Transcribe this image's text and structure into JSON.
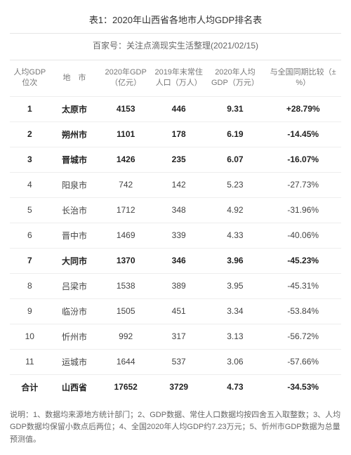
{
  "title": "表1：2020年山西省各地市人均GDP排名表",
  "subtitle": "百家号：关注点滴现实生活整理(2021/02/15)",
  "columns": {
    "rank": "人均GDP位次",
    "city": "地　市",
    "gdp": "2020年GDP（亿元）",
    "pop": "2019年末常住人口（万人）",
    "pcgdp": "2020年人均GDP（万元）",
    "comp": "与全国同期比较（±%）"
  },
  "rows": [
    {
      "rank": "1",
      "city": "太原市",
      "gdp": "4153",
      "pop": "446",
      "pcgdp": "9.31",
      "comp": "+28.79%",
      "bold": true
    },
    {
      "rank": "2",
      "city": "朔州市",
      "gdp": "1101",
      "pop": "178",
      "pcgdp": "6.19",
      "comp": "-14.45%",
      "bold": true
    },
    {
      "rank": "3",
      "city": "晋城市",
      "gdp": "1426",
      "pop": "235",
      "pcgdp": "6.07",
      "comp": "-16.07%",
      "bold": true
    },
    {
      "rank": "4",
      "city": "阳泉市",
      "gdp": "742",
      "pop": "142",
      "pcgdp": "5.23",
      "comp": "-27.73%",
      "bold": false
    },
    {
      "rank": "5",
      "city": "长治市",
      "gdp": "1712",
      "pop": "348",
      "pcgdp": "4.92",
      "comp": "-31.96%",
      "bold": false
    },
    {
      "rank": "6",
      "city": "晋中市",
      "gdp": "1469",
      "pop": "339",
      "pcgdp": "4.33",
      "comp": "-40.06%",
      "bold": false
    },
    {
      "rank": "7",
      "city": "大同市",
      "gdp": "1370",
      "pop": "346",
      "pcgdp": "3.96",
      "comp": "-45.23%",
      "bold": true
    },
    {
      "rank": "8",
      "city": "吕梁市",
      "gdp": "1538",
      "pop": "389",
      "pcgdp": "3.95",
      "comp": "-45.31%",
      "bold": false
    },
    {
      "rank": "9",
      "city": "临汾市",
      "gdp": "1505",
      "pop": "451",
      "pcgdp": "3.34",
      "comp": "-53.84%",
      "bold": false
    },
    {
      "rank": "10",
      "city": "忻州市",
      "gdp": "992",
      "pop": "317",
      "pcgdp": "3.13",
      "comp": "-56.72%",
      "bold": false
    },
    {
      "rank": "11",
      "city": "运城市",
      "gdp": "1644",
      "pop": "537",
      "pcgdp": "3.06",
      "comp": "-57.66%",
      "bold": false
    },
    {
      "rank": "合计",
      "city": "山西省",
      "gdp": "17652",
      "pop": "3729",
      "pcgdp": "4.73",
      "comp": "-34.53%",
      "bold": true
    }
  ],
  "notes": "说明：1、数据均来源地方统计部门；2、GDP数据、常住人口数据均按四舍五入取整数；3、人均GDP数据均保留小数点后两位；4、全国2020年人均GDP约7.23万元；5、忻州市GDP数据为总量预测值。",
  "style": {
    "background": "#ffffff",
    "border_color": "#e5e5e5",
    "row_border": "#eeeeee",
    "text_color": "#333333",
    "muted_color": "#777777",
    "notes_color": "#666666",
    "font_size_body": 12,
    "font_size_header": 11,
    "font_size_title": 13
  }
}
